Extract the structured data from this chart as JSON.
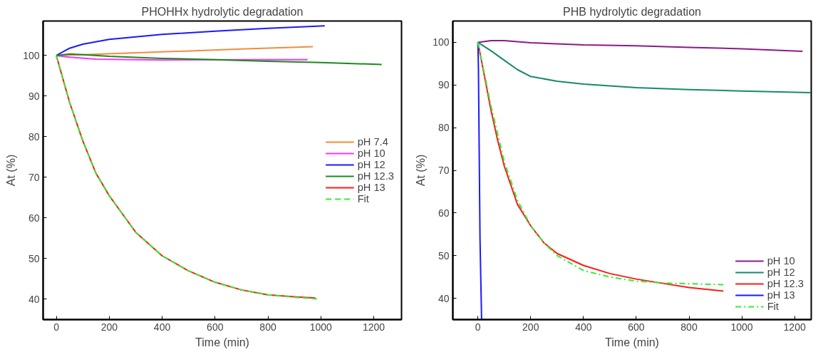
{
  "chart_data": [
    {
      "type": "line",
      "title": "PHOHHx hydrolytic degradation",
      "xlabel": "Time (min)",
      "ylabel": "At (%)",
      "xlim": [
        -50,
        1305
      ],
      "ylim": [
        35,
        108.5
      ],
      "xticks": [
        0,
        200,
        400,
        600,
        800,
        1000,
        1200
      ],
      "yticks": [
        40,
        50,
        60,
        70,
        80,
        90,
        100
      ],
      "grid": false,
      "legend": "right",
      "line_style": "solid",
      "series": [
        {
          "name": "pH 7.4",
          "color": "#f28c3c",
          "x": [
            0,
            100,
            400,
            700,
            970
          ],
          "values": [
            100,
            100.2,
            100.9,
            101.6,
            102.2
          ]
        },
        {
          "name": "pH 10",
          "color": "#ff33ff",
          "x": [
            0,
            50,
            150,
            400,
            700,
            950
          ],
          "values": [
            100,
            99.6,
            99.1,
            98.9,
            99.0,
            99.0
          ]
        },
        {
          "name": "pH 12",
          "color": "#1a1aff",
          "x": [
            0,
            50,
            100,
            200,
            400,
            600,
            800,
            1015
          ],
          "values": [
            100,
            101.8,
            102.8,
            104,
            105.2,
            106,
            106.7,
            107.3
          ]
        },
        {
          "name": "pH 12.3",
          "color": "#1a8c1a",
          "x": [
            0,
            50,
            100,
            200,
            400,
            600,
            800,
            1000,
            1230
          ],
          "values": [
            100,
            100.4,
            100.2,
            99.8,
            99.3,
            99,
            98.6,
            98.3,
            97.8
          ]
        },
        {
          "name": "pH 13",
          "color": "#ff1a1a",
          "x": [
            0,
            50,
            100,
            150,
            200,
            250,
            300,
            400,
            500,
            600,
            700,
            800,
            900,
            980
          ],
          "values": [
            100,
            88.5,
            79,
            71,
            65.5,
            61,
            56.5,
            50.7,
            47,
            44.2,
            42.3,
            41.1,
            40.6,
            40.3
          ]
        },
        {
          "name": "Fit",
          "color": "#33ee33",
          "line_style": "dashed",
          "x": [
            0,
            50,
            100,
            150,
            200,
            250,
            300,
            400,
            500,
            600,
            700,
            800,
            900,
            985
          ],
          "values": [
            100,
            88.5,
            79,
            71,
            65.5,
            61,
            56.5,
            50.7,
            47,
            44.2,
            42.3,
            41.1,
            40.5,
            40.1
          ]
        }
      ]
    },
    {
      "type": "line",
      "title": "PHB hydrolytic degradation",
      "xlabel": "Time (min)",
      "ylabel": "At (%)",
      "xlim": [
        -95,
        1263
      ],
      "ylim": [
        35,
        105
      ],
      "xticks": [
        0,
        200,
        400,
        600,
        800,
        1000,
        1200
      ],
      "yticks": [
        40,
        50,
        60,
        70,
        80,
        90,
        100
      ],
      "grid": false,
      "legend": "bottom right",
      "line_style": "solid",
      "series": [
        {
          "name": "pH 10",
          "color": "#8b1a8b",
          "x": [
            0,
            50,
            100,
            200,
            400,
            600,
            800,
            1000,
            1230
          ],
          "values": [
            100,
            100.4,
            100.4,
            99.9,
            99.4,
            99.2,
            98.8,
            98.5,
            97.9
          ]
        },
        {
          "name": "pH 12",
          "color": "#168a6a",
          "x": [
            0,
            50,
            100,
            150,
            200,
            300,
            400,
            600,
            800,
            1000,
            1260
          ],
          "values": [
            100,
            98,
            95.8,
            93.6,
            92,
            90.9,
            90.2,
            89.4,
            88.9,
            88.6,
            88.2
          ]
        },
        {
          "name": "pH 12.3",
          "color": "#ff1a1a",
          "x": [
            0,
            25,
            50,
            75,
            100,
            150,
            200,
            250,
            300,
            400,
            500,
            600,
            700,
            800,
            930
          ],
          "values": [
            100,
            92,
            84,
            77,
            71,
            62,
            57,
            53,
            50.5,
            47.7,
            45.8,
            44.5,
            43.5,
            42.5,
            41.7
          ]
        },
        {
          "name": "pH 13",
          "color": "#1a1aff",
          "x": [
            0,
            2,
            5,
            8,
            14
          ],
          "values": [
            100,
            94,
            74,
            54,
            35
          ]
        },
        {
          "name": "Fit",
          "color": "#33ee33",
          "line_style": "dashdot",
          "x": [
            0,
            50,
            100,
            150,
            200,
            250,
            300,
            400,
            500,
            600,
            700,
            800,
            930
          ],
          "values": [
            100,
            85,
            72,
            63,
            57,
            53,
            50,
            46.5,
            45,
            44,
            43.6,
            43.4,
            43.2
          ]
        }
      ]
    }
  ]
}
